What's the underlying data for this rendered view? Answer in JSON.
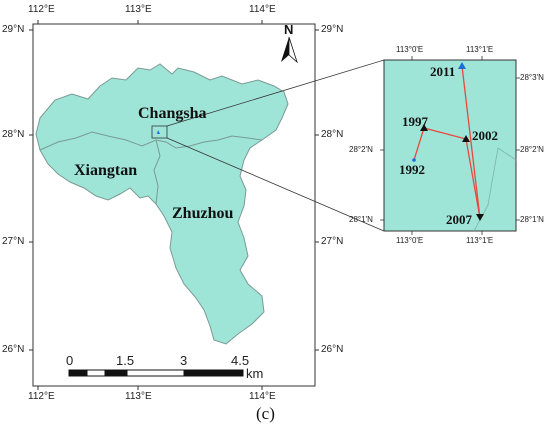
{
  "main_map": {
    "lon_labels_top": [
      "112°E",
      "113°E",
      "114°E"
    ],
    "lon_labels_bottom": [
      "112°E",
      "113°E",
      "114°E"
    ],
    "lat_labels_left": [
      "29°N",
      "28°N",
      "27°N",
      "26°N"
    ],
    "lat_labels_right": [
      "29°N",
      "28°N",
      "27°N",
      "26°N"
    ],
    "cities": [
      "Changsha",
      "Xiangtan",
      "Zhuzhou"
    ],
    "north_label": "N",
    "scale_labels": [
      "0",
      "1.5",
      "3",
      "4.5"
    ],
    "scale_unit": "km",
    "fill_color": "#9ee5d8",
    "boundary_color": "#7a9a94"
  },
  "inset": {
    "lon_labels_top": [
      "113°0'E",
      "113°1'E"
    ],
    "lon_labels_bottom": [
      "113°0'E",
      "113°1'E"
    ],
    "lat_labels_left": [
      "28°2'N",
      "28°1'N"
    ],
    "lat_labels_right": [
      "28°3'N",
      "28°2'N",
      "28°1'N"
    ],
    "years": [
      "2011",
      "1997",
      "2002",
      "1992",
      "2007"
    ],
    "track_color": "#e8493f"
  },
  "caption": "(c)"
}
